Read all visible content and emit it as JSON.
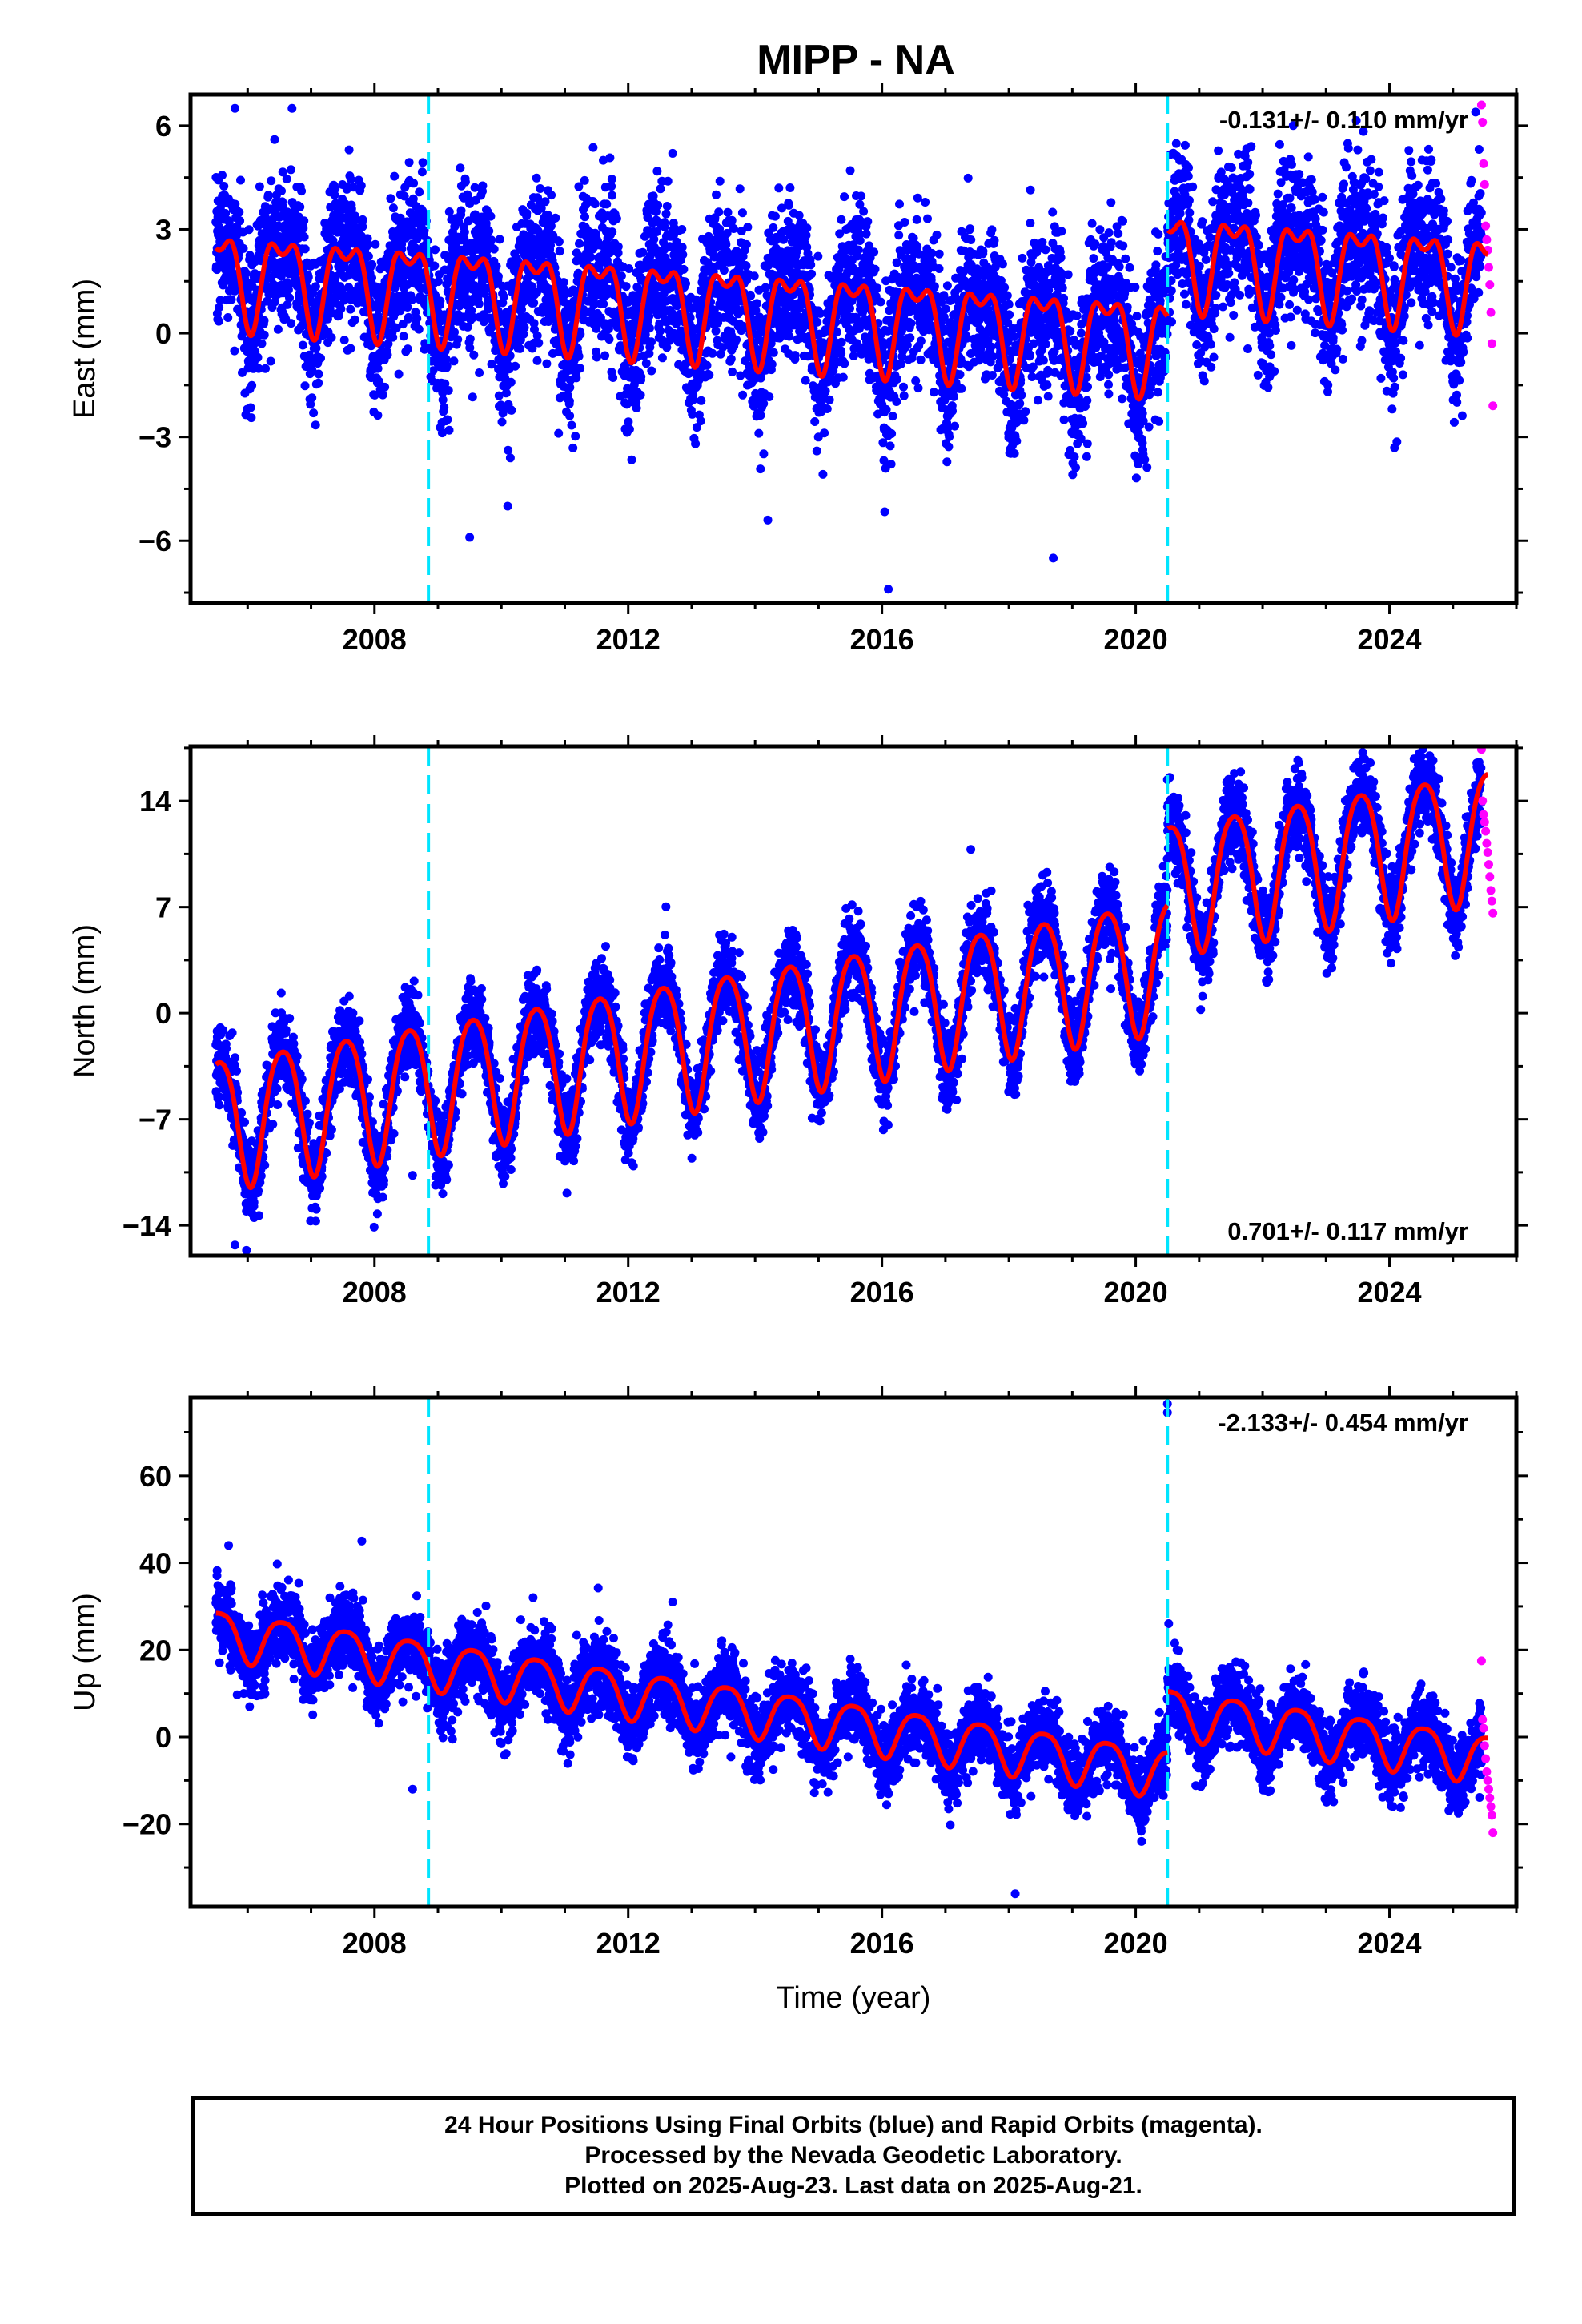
{
  "title": "MIPP - NA",
  "colors": {
    "final_orbits": "#0000ff",
    "rapid_orbits": "#ff00ff",
    "model": "#ff0000",
    "equipment_change": "#00e5ff",
    "axis": "#000000"
  },
  "chart_data": [
    {
      "type": "scatter",
      "component": "east",
      "ylabel": "East (mm)",
      "xlabel": "",
      "xlim": [
        2005.1,
        2026.0
      ],
      "ylim": [
        -7.8,
        6.9
      ],
      "xticks": [
        2008,
        2012,
        2016,
        2020,
        2024
      ],
      "yticks": [
        -6,
        -3,
        0,
        3,
        6
      ],
      "ytick_labels": [
        "−6",
        "−3",
        "0",
        "3",
        "6"
      ],
      "rate_label": "-0.131+/- 0.110 mm/yr",
      "rate_label_position": "top-right",
      "equipment_changes": [
        2008.85,
        2020.5
      ],
      "model": {
        "trend_mm_per_yr": -0.131,
        "offset_at_start": 1.8,
        "annual_amplitude": 1.2,
        "semiannual_amplitude": 0.6,
        "offset_at_2020_5": 2.5
      },
      "scatter_sd_mm": 1.1,
      "sample_points": [
        {
          "x": 2005.8,
          "y": 6.5
        },
        {
          "x": 2006.7,
          "y": 6.5
        },
        {
          "x": 2007.6,
          "y": 5.3
        },
        {
          "x": 2009.5,
          "y": -5.9
        },
        {
          "x": 2010.1,
          "y": -5.0
        },
        {
          "x": 2012.7,
          "y": 5.2
        },
        {
          "x": 2014.2,
          "y": -5.4
        },
        {
          "x": 2016.1,
          "y": -7.4
        },
        {
          "x": 2018.7,
          "y": -6.5
        },
        {
          "x": 2023.5,
          "y": 5.3
        },
        {
          "x": 2015.5,
          "y": 4.7
        },
        {
          "x": 2021.4,
          "y": 4.0
        }
      ],
      "series": [
        {
          "name": "Final Orbits (blue)",
          "color": "#0000ff",
          "x_range": [
            2005.5,
            2025.45
          ]
        },
        {
          "name": "Rapid Orbits (magenta)",
          "color": "#ff00ff",
          "x_range": [
            2025.45,
            2025.63
          ],
          "values": [
            6.6,
            6.1,
            4.9,
            4.3,
            3.1,
            2.7,
            2.4,
            1.9,
            1.4,
            0.6,
            -0.3,
            -2.1
          ]
        }
      ]
    },
    {
      "type": "scatter",
      "component": "north",
      "ylabel": "North (mm)",
      "xlabel": "",
      "xlim": [
        2005.1,
        2026.0
      ],
      "ylim": [
        -16.0,
        17.6
      ],
      "xticks": [
        2008,
        2012,
        2016,
        2020,
        2024
      ],
      "yticks": [
        -14,
        -7,
        0,
        7,
        14
      ],
      "ytick_labels": [
        "−14",
        "−7",
        "0",
        "7",
        "14"
      ],
      "rate_label": "0.701+/- 0.117 mm/yr",
      "rate_label_position": "bottom-right",
      "equipment_changes": [
        2008.85,
        2020.5
      ],
      "model": {
        "trend_mm_per_yr": 0.701,
        "offset_at_start": -7.0,
        "annual_amplitude": 4.3,
        "semiannual_amplitude": 0.6,
        "offset_at_2020_5": 5.0
      },
      "scatter_sd_mm": 1.3,
      "sample_points": [
        {
          "x": 2005.8,
          "y": -15.3
        },
        {
          "x": 2020.5,
          "y": 15.4
        },
        {
          "x": 2024.5,
          "y": 16.4
        },
        {
          "x": 2023.7,
          "y": 15.4
        },
        {
          "x": 2017.4,
          "y": 10.8
        },
        {
          "x": 2008.6,
          "y": -10.7
        }
      ],
      "series": [
        {
          "name": "Final Orbits (blue)",
          "color": "#0000ff",
          "x_range": [
            2005.5,
            2025.45
          ]
        },
        {
          "name": "Rapid Orbits (magenta)",
          "color": "#ff00ff",
          "x_range": [
            2025.45,
            2025.63
          ],
          "values": [
            17.4,
            14.0,
            13.1,
            12.6,
            12.0,
            11.2,
            10.6,
            9.8,
            9.0,
            8.1,
            7.4,
            6.6
          ]
        }
      ]
    },
    {
      "type": "scatter",
      "component": "up",
      "ylabel": "Up (mm)",
      "xlabel": "Time (year)",
      "xlim": [
        2005.1,
        2026.0
      ],
      "ylim": [
        -39.0,
        78.0
      ],
      "xticks": [
        2008,
        2012,
        2016,
        2020,
        2024
      ],
      "yticks": [
        -20,
        0,
        20,
        40,
        60
      ],
      "ytick_labels": [
        "−20",
        "0",
        "20",
        "40",
        "60"
      ],
      "rate_label": "-2.133+/- 0.454 mm/yr",
      "rate_label_position": "top-right",
      "equipment_changes": [
        2008.85,
        2020.5
      ],
      "model": {
        "trend_mm_per_yr": -2.133,
        "offset_at_start": 24.0,
        "annual_amplitude": 5.5,
        "semiannual_amplitude": 1.0,
        "offset_at_2020_5": 14.0
      },
      "scatter_sd_mm": 4.2,
      "sample_points": [
        {
          "x": 2005.7,
          "y": 44.0
        },
        {
          "x": 2007.8,
          "y": 45.0
        },
        {
          "x": 2018.1,
          "y": -36.0
        },
        {
          "x": 2020.5,
          "y": 76.5
        },
        {
          "x": 2020.5,
          "y": 74.5
        },
        {
          "x": 2008.6,
          "y": -12.0
        },
        {
          "x": 2012.7,
          "y": 31.0
        },
        {
          "x": 2010.5,
          "y": 32.0
        }
      ],
      "series": [
        {
          "name": "Final Orbits (blue)",
          "color": "#0000ff",
          "x_range": [
            2005.5,
            2025.45
          ]
        },
        {
          "name": "Rapid Orbits (magenta)",
          "color": "#ff00ff",
          "x_range": [
            2025.45,
            2025.63
          ],
          "values": [
            17.5,
            4.0,
            2.0,
            -2.0,
            -5.0,
            -8.0,
            -10.0,
            -12.0,
            -14.0,
            -16.0,
            -18.0,
            -22.0
          ]
        }
      ]
    }
  ],
  "caption": {
    "line1": "24 Hour Positions Using Final Orbits (blue) and Rapid Orbits (magenta).",
    "line2": "Processed by the Nevada Geodetic Laboratory.",
    "line3": "Plotted on 2025-Aug-23. Last data on 2025-Aug-21."
  }
}
